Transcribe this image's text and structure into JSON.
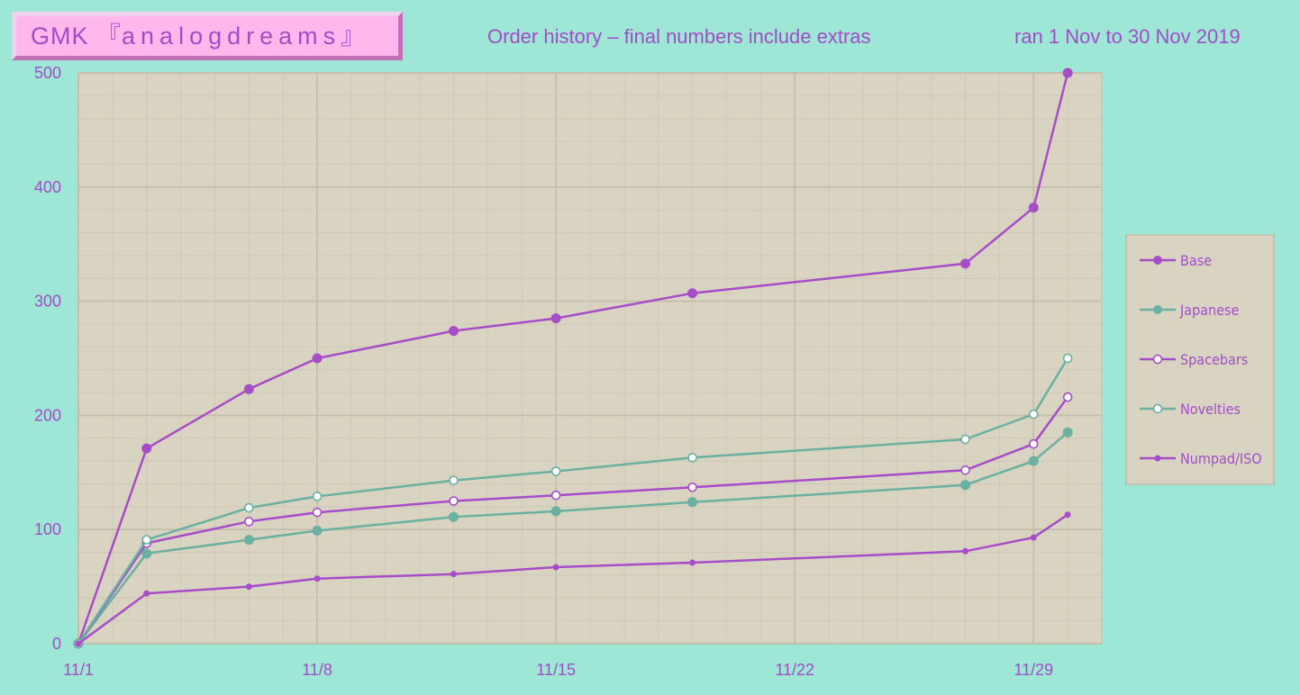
{
  "header": {
    "logo_prefix": "GMK 『",
    "logo_name": "analogdreams",
    "logo_suffix": "』",
    "subtitle": "Order history – final numbers include extras",
    "date_range": "ran 1 Nov to 30 Nov 2019"
  },
  "colors": {
    "background": "#9ee6d6",
    "plot_area": "#d9d3c2",
    "purple": "#a84dc8",
    "teal": "#6bb0a0",
    "logo_fill": "#ffb8ec"
  },
  "chart_data": {
    "type": "line",
    "x": [
      "11/1",
      "11/3",
      "11/6",
      "11/8",
      "11/12",
      "11/15",
      "11/19",
      "11/27",
      "11/29",
      "11/30"
    ],
    "x_day": [
      1,
      3,
      6,
      8,
      12,
      15,
      19,
      27,
      29,
      30
    ],
    "xticks": [
      "11/1",
      "11/8",
      "11/15",
      "11/22",
      "11/29"
    ],
    "xticks_day": [
      1,
      8,
      15,
      22,
      29
    ],
    "xlim": [
      1,
      31
    ],
    "ylim": [
      0,
      500
    ],
    "yticks": [
      0,
      100,
      200,
      300,
      400,
      500
    ],
    "grid": true,
    "legend_position": "right",
    "series": [
      {
        "name": "Base",
        "values": [
          0,
          171,
          223,
          250,
          274,
          285,
          307,
          333,
          382,
          500
        ],
        "color": "#a84dc8",
        "marker": "filled"
      },
      {
        "name": "Japanese",
        "values": [
          0,
          79,
          91,
          99,
          111,
          116,
          124,
          139,
          160,
          185
        ],
        "color": "#6bb0a0",
        "marker": "filled"
      },
      {
        "name": "Spacebars",
        "values": [
          0,
          88,
          107,
          115,
          125,
          130,
          137,
          152,
          175,
          216
        ],
        "color": "#a84dc8",
        "marker": "hollow"
      },
      {
        "name": "Novelties",
        "values": [
          0,
          91,
          119,
          129,
          143,
          151,
          163,
          179,
          201,
          250
        ],
        "color": "#6bb0a0",
        "marker": "hollow"
      },
      {
        "name": "Numpad/ISO",
        "values": [
          0,
          44,
          50,
          57,
          61,
          67,
          71,
          81,
          93,
          113
        ],
        "color": "#a84dc8",
        "marker": "small"
      }
    ]
  }
}
